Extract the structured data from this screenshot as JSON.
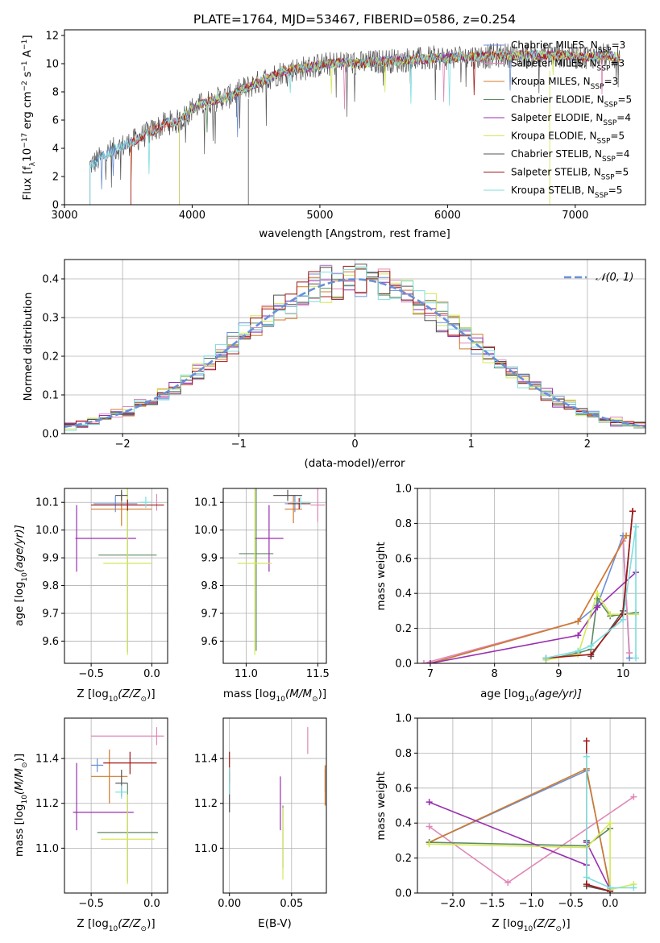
{
  "chart_data": [
    {
      "id": "spectrum",
      "type": "line",
      "title": "PLATE=1764, MJD=53467, FIBERID=0586, z=0.254",
      "xlabel": "wavelength [Angstrom, rest frame]",
      "ylabel_parts": [
        "Flux [f",
        "λ",
        "10",
        "−17",
        " erg cm",
        "−2",
        " s",
        "−1",
        " A",
        "−1",
        "]"
      ],
      "xlim": [
        3000,
        7550
      ],
      "ylim": [
        0,
        12.4
      ],
      "xticks": [
        3000,
        4000,
        5000,
        6000,
        7000
      ],
      "yticks": [
        0,
        2,
        4,
        6,
        8,
        10,
        12
      ],
      "grid": false,
      "legend_position": "upper-right",
      "series": [
        {
          "name": "Chabrier MILES, N",
          "sub": "SSP",
          "suffix": "=3",
          "color": "#6a8fd6"
        },
        {
          "name": "Salpeter MILES, N",
          "sub": "SSP",
          "suffix": "=3",
          "color": "#e088b8"
        },
        {
          "name": "Kroupa MILES, N",
          "sub": "SSP",
          "suffix": "=3",
          "color": "#d17a2a"
        },
        {
          "name": "Chabrier ELODIE, N",
          "sub": "SSP",
          "suffix": "=5",
          "color": "#5e8a62"
        },
        {
          "name": "Salpeter ELODIE, N",
          "sub": "SSP",
          "suffix": "=4",
          "color": "#9a2fb0"
        },
        {
          "name": "Kroupa ELODIE, N",
          "sub": "SSP",
          "suffix": "=5",
          "color": "#d4e85a"
        },
        {
          "name": "Chabrier STELIB, N",
          "sub": "SSP",
          "suffix": "=4",
          "color": "#555555"
        },
        {
          "name": "Salpeter STELIB, N",
          "sub": "SSP",
          "suffix": "=5",
          "color": "#a11818"
        },
        {
          "name": "Kroupa STELIB, N",
          "sub": "SSP",
          "suffix": "=5",
          "color": "#7fdede"
        }
      ],
      "continuum": [
        [
          3200,
          2.8
        ],
        [
          3300,
          3.4
        ],
        [
          3400,
          4.0
        ],
        [
          3500,
          4.3
        ],
        [
          3600,
          4.8
        ],
        [
          3700,
          5.3
        ],
        [
          3800,
          5.8
        ],
        [
          3900,
          5.9
        ],
        [
          4000,
          6.8
        ],
        [
          4100,
          7.2
        ],
        [
          4200,
          7.5
        ],
        [
          4300,
          7.7
        ],
        [
          4400,
          8.2
        ],
        [
          4500,
          8.6
        ],
        [
          4600,
          9.0
        ],
        [
          4700,
          9.4
        ],
        [
          4800,
          9.6
        ],
        [
          4900,
          9.7
        ],
        [
          5000,
          9.9
        ],
        [
          5100,
          10.0
        ],
        [
          5200,
          10.1
        ],
        [
          5300,
          10.0
        ],
        [
          5400,
          10.1
        ],
        [
          5500,
          10.2
        ],
        [
          5600,
          10.2
        ],
        [
          5700,
          10.3
        ],
        [
          5800,
          10.3
        ],
        [
          5900,
          10.4
        ],
        [
          6000,
          10.4
        ],
        [
          6100,
          10.5
        ],
        [
          6200,
          10.5
        ],
        [
          6300,
          10.5
        ],
        [
          6400,
          10.6
        ],
        [
          6500,
          10.6
        ],
        [
          6600,
          10.6
        ],
        [
          6700,
          10.6
        ],
        [
          6800,
          10.6
        ],
        [
          6900,
          10.6
        ],
        [
          7000,
          10.5
        ],
        [
          7100,
          10.5
        ],
        [
          7200,
          10.6
        ],
        [
          7300,
          10.5
        ],
        [
          7350,
          10.4
        ]
      ],
      "series_starts": [
        3200,
        3520,
        3520,
        3900,
        3900,
        3900,
        3200,
        3520,
        3200
      ]
    },
    {
      "id": "residuals",
      "type": "histogram",
      "xlabel": "(data-model)/error",
      "ylabel": "Normed distribution",
      "xlim": [
        -2.5,
        2.5
      ],
      "ylim": [
        0,
        0.45
      ],
      "xticks": [
        -2,
        -1,
        0,
        1,
        2
      ],
      "yticks": [
        0.0,
        0.1,
        0.2,
        0.3,
        0.4
      ],
      "grid": true,
      "legend_position": "upper-right",
      "reference_curve": {
        "name": "𝒩(0, 1)",
        "mean": 0,
        "sigma": 1,
        "color": "#6a8fd6",
        "dashed": true
      },
      "bin_width": 0.1
    },
    {
      "id": "age-vs-Z",
      "type": "errorbar",
      "xlabel_main": "Z [log",
      "xlabel_sub": "10",
      "xlabel_rest": "(Z/Z",
      "xlabel_end": ")]",
      "ylabel_main": "age  [log",
      "ylabel_sub": "10",
      "ylabel_rest": "(age/yr)]",
      "xlim": [
        -0.72,
        0.13
      ],
      "ylim": [
        9.52,
        10.15
      ],
      "xticks": [
        -0.5,
        0.0
      ],
      "yticks": [
        9.6,
        9.7,
        9.8,
        9.9,
        10.0,
        10.1
      ],
      "grid": true,
      "points": [
        {
          "series": 0,
          "x": -0.3,
          "xerr": 0.18,
          "y": 10.095,
          "yerr": 0.03
        },
        {
          "series": 1,
          "x": 0.04,
          "xerr": 0.0,
          "y": 10.1,
          "yerr": 0.03
        },
        {
          "series": 2,
          "x": -0.25,
          "xerr": 0.25,
          "y": 10.075,
          "yerr": 0.06
        },
        {
          "series": 3,
          "x": -0.2,
          "xerr": 0.24,
          "y": 9.91,
          "yerr": 0.35
        },
        {
          "series": 4,
          "x": -0.62,
          "xerr": 0.0,
          "y": 9.97,
          "yerr": 0.12
        },
        {
          "series": 4,
          "x": -0.38,
          "xerr": 0.25,
          "y": 9.97,
          "yerr": 0.0
        },
        {
          "series": 5,
          "x": -0.2,
          "xerr": 0.2,
          "y": 9.88,
          "yerr": 0.33
        },
        {
          "series": 6,
          "x": -0.25,
          "xerr": 0.05,
          "y": 10.125,
          "yerr": 0.02
        },
        {
          "series": 7,
          "x": -0.2,
          "xerr": 0.3,
          "y": 10.09,
          "yerr": 0.02
        },
        {
          "series": 8,
          "x": -0.05,
          "xerr": 0.05,
          "y": 10.1,
          "yerr": 0.02
        }
      ]
    },
    {
      "id": "age-vs-mass",
      "type": "errorbar",
      "xlabel_main": "mass [log",
      "xlabel_sub": "10",
      "xlabel_rest": "(M/M",
      "xlabel_end": ")]",
      "xlim": [
        10.84,
        11.56
      ],
      "ylim": [
        9.52,
        10.15
      ],
      "xticks": [
        11.0,
        11.5
      ],
      "yticks": [
        9.6,
        9.7,
        9.8,
        9.9,
        10.0,
        10.1
      ],
      "grid": true,
      "points": [
        {
          "series": 0,
          "x": 11.34,
          "xerr": 0.07,
          "y": 10.095,
          "yerr": 0.03
        },
        {
          "series": 1,
          "x": 11.5,
          "xerr": 0.05,
          "y": 10.09,
          "yerr": 0.06
        },
        {
          "series": 2,
          "x": 11.33,
          "xerr": 0.06,
          "y": 10.075,
          "yerr": 0.05
        },
        {
          "series": 3,
          "x": 11.07,
          "xerr": 0.12,
          "y": 9.915,
          "yerr": 0.35
        },
        {
          "series": 4,
          "x": 11.16,
          "xerr": 0.1,
          "y": 9.97,
          "yerr": 0.12
        },
        {
          "series": 5,
          "x": 11.06,
          "xerr": 0.12,
          "y": 9.88,
          "yerr": 0.33
        },
        {
          "series": 6,
          "x": 11.29,
          "xerr": 0.1,
          "y": 10.125,
          "yerr": 0.02
        },
        {
          "series": 7,
          "x": 11.37,
          "xerr": 0.08,
          "y": 10.095,
          "yerr": 0.02
        },
        {
          "series": 8,
          "x": 11.38,
          "xerr": 0.07,
          "y": 10.1,
          "yerr": 0.02
        }
      ]
    },
    {
      "id": "weight-vs-age",
      "type": "line",
      "xlabel_main": "age  [log",
      "xlabel_sub": "10",
      "xlabel_rest": "(age/yr)]",
      "ylabel": "mass weight",
      "xlim": [
        6.8,
        10.35
      ],
      "ylim": [
        0,
        1.0
      ],
      "xticks": [
        7,
        8,
        9,
        10
      ],
      "yticks": [
        0.0,
        0.2,
        0.4,
        0.6,
        0.8,
        1.0
      ],
      "grid": true,
      "series": [
        {
          "series": 0,
          "points": [
            [
              7.0,
              0.0
            ],
            [
              9.3,
              0.24
            ],
            [
              9.6,
              0.33
            ],
            [
              10.0,
              0.73
            ],
            [
              10.1,
              0.03
            ]
          ]
        },
        {
          "series": 1,
          "points": [
            [
              6.9,
              0.0
            ],
            [
              9.3,
              0.24
            ],
            [
              10.0,
              0.7
            ],
            [
              10.1,
              0.06
            ]
          ]
        },
        {
          "series": 2,
          "points": [
            [
              7.0,
              0.0
            ],
            [
              9.3,
              0.24
            ],
            [
              10.05,
              0.73
            ]
          ]
        },
        {
          "series": 3,
          "points": [
            [
              8.8,
              0.02
            ],
            [
              9.3,
              0.06
            ],
            [
              9.5,
              0.08
            ],
            [
              9.6,
              0.37
            ],
            [
              9.8,
              0.27
            ],
            [
              10.2,
              0.29
            ]
          ]
        },
        {
          "series": 4,
          "points": [
            [
              7.0,
              0.0
            ],
            [
              9.3,
              0.16
            ],
            [
              9.6,
              0.32
            ],
            [
              10.2,
              0.52
            ]
          ]
        },
        {
          "series": 5,
          "points": [
            [
              8.8,
              0.02
            ],
            [
              9.3,
              0.05
            ],
            [
              9.6,
              0.4
            ],
            [
              9.8,
              0.28
            ],
            [
              10.2,
              0.28
            ]
          ]
        },
        {
          "series": 6,
          "points": [
            [
              9.5,
              0.04
            ],
            [
              10.0,
              0.3
            ],
            [
              10.15,
              0.87
            ]
          ]
        },
        {
          "series": 7,
          "points": [
            [
              8.8,
              0.03
            ],
            [
              9.5,
              0.05
            ],
            [
              10.0,
              0.28
            ],
            [
              10.15,
              0.87
            ]
          ]
        },
        {
          "series": 8,
          "points": [
            [
              8.8,
              0.03
            ],
            [
              9.3,
              0.07
            ],
            [
              9.5,
              0.1
            ],
            [
              10.0,
              0.25
            ],
            [
              10.2,
              0.78
            ],
            [
              10.2,
              0.03
            ]
          ]
        }
      ]
    },
    {
      "id": "mass-vs-Z",
      "type": "errorbar",
      "xlabel_main": "Z [log",
      "xlabel_sub": "10",
      "xlabel_rest": "(Z/Z",
      "xlabel_end": ")]",
      "ylabel_main": "mass [log",
      "ylabel_sub": "10",
      "ylabel_rest": "(M/M",
      "ylabel_end": ")]",
      "xlim": [
        -0.72,
        0.13
      ],
      "ylim": [
        10.8,
        11.58
      ],
      "xticks": [
        -0.5,
        0.0
      ],
      "yticks": [
        11.0,
        11.2,
        11.4
      ],
      "grid": true,
      "points": [
        {
          "series": 0,
          "x": -0.45,
          "xerr": 0.05,
          "y": 11.37,
          "yerr": 0.03
        },
        {
          "series": 1,
          "x": -0.2,
          "xerr": 0.3,
          "y": 11.5,
          "yerr": 0.0
        },
        {
          "series": 1,
          "x": 0.04,
          "xerr": 0.0,
          "y": 11.5,
          "yerr": 0.04
        },
        {
          "series": 2,
          "x": -0.35,
          "xerr": 0.15,
          "y": 11.32,
          "yerr": 0.12
        },
        {
          "series": 3,
          "x": -0.2,
          "xerr": 0.25,
          "y": 11.07,
          "yerr": 0.22
        },
        {
          "series": 4,
          "x": -0.62,
          "xerr": 0.0,
          "y": 11.23,
          "yerr": 0.15
        },
        {
          "series": 4,
          "x": -0.4,
          "xerr": 0.25,
          "y": 11.16,
          "yerr": 0.0
        },
        {
          "series": 5,
          "x": -0.2,
          "xerr": 0.22,
          "y": 11.04,
          "yerr": 0.2
        },
        {
          "series": 6,
          "x": -0.25,
          "xerr": 0.05,
          "y": 11.29,
          "yerr": 0.06
        },
        {
          "series": 7,
          "x": -0.18,
          "xerr": 0.22,
          "y": 11.38,
          "yerr": 0.05
        },
        {
          "series": 8,
          "x": -0.25,
          "xerr": 0.05,
          "y": 11.25,
          "yerr": 0.03
        }
      ]
    },
    {
      "id": "mass-vs-ebv",
      "type": "errorbar",
      "xlabel": "E(B-V)",
      "xlim": [
        -0.005,
        0.078
      ],
      "ylim": [
        10.8,
        11.58
      ],
      "xticks": [
        0.0,
        0.05
      ],
      "yticks": [
        11.0,
        11.2,
        11.4
      ],
      "grid": true,
      "points": [
        {
          "series": 0,
          "x": 0.077,
          "xerr": 0.0,
          "y": 11.3,
          "yerr": 0.05
        },
        {
          "series": 1,
          "x": 0.063,
          "xerr": 0.0,
          "y": 11.48,
          "yerr": 0.06
        },
        {
          "series": 2,
          "x": 0.077,
          "xerr": 0.0,
          "y": 11.28,
          "yerr": 0.09
        },
        {
          "series": 3,
          "x": 0.043,
          "xerr": 0.0,
          "y": 11.05,
          "yerr": 0.14
        },
        {
          "series": 4,
          "x": 0.041,
          "xerr": 0.0,
          "y": 11.2,
          "yerr": 0.12
        },
        {
          "series": 5,
          "x": 0.043,
          "xerr": 0.0,
          "y": 11.02,
          "yerr": 0.16
        },
        {
          "series": 6,
          "x": 0.0,
          "xerr": 0.0,
          "y": 11.25,
          "yerr": 0.09
        },
        {
          "series": 7,
          "x": 0.0,
          "xerr": 0.0,
          "y": 11.36,
          "yerr": 0.07
        },
        {
          "series": 8,
          "x": 0.0,
          "xerr": 0.0,
          "y": 11.3,
          "yerr": 0.06
        }
      ]
    },
    {
      "id": "weight-vs-Z",
      "type": "line",
      "xlabel_main": "Z [log",
      "xlabel_sub": "10",
      "xlabel_rest": "(Z/Z",
      "xlabel_end": ")]",
      "ylabel": "mass weight",
      "xlim": [
        -2.45,
        0.45
      ],
      "ylim": [
        0,
        1.0
      ],
      "xticks": [
        -2.0,
        -1.5,
        -1.0,
        -0.5,
        0.0
      ],
      "yticks": [
        0.0,
        0.2,
        0.4,
        0.6,
        0.8,
        1.0
      ],
      "grid": true,
      "series": [
        {
          "series": 0,
          "points": [
            [
              -2.3,
              0.29
            ],
            [
              -0.3,
              0.7
            ],
            [
              0.0,
              0.03
            ]
          ]
        },
        {
          "series": 1,
          "points": [
            [
              -2.3,
              0.38
            ],
            [
              -1.3,
              0.06
            ],
            [
              0.3,
              0.55
            ]
          ]
        },
        {
          "series": 2,
          "points": [
            [
              -2.3,
              0.29
            ],
            [
              -0.3,
              0.71
            ],
            [
              0.0,
              0.02
            ]
          ]
        },
        {
          "series": 3,
          "points": [
            [
              -2.3,
              0.29
            ],
            [
              -0.3,
              0.27
            ],
            [
              0.0,
              0.37
            ]
          ]
        },
        {
          "series": 4,
          "points": [
            [
              -2.3,
              0.52
            ],
            [
              -0.3,
              0.16
            ],
            [
              -0.3,
              0.29
            ],
            [
              0.0,
              0.02
            ]
          ]
        },
        {
          "series": 5,
          "points": [
            [
              -2.3,
              0.28
            ],
            [
              -0.3,
              0.26
            ],
            [
              0.0,
              0.4
            ],
            [
              0.0,
              0.02
            ],
            [
              0.3,
              0.05
            ]
          ]
        },
        {
          "series": 6,
          "points": [
            [
              -0.3,
              0.3
            ],
            [
              -0.3,
              0.04
            ],
            [
              0.0,
              0.01
            ]
          ]
        },
        {
          "series": 7,
          "points": [
            [
              -0.3,
              0.87
            ],
            [
              -0.3,
              0.05
            ],
            [
              0.0,
              0.01
            ]
          ]
        },
        {
          "series": 8,
          "points": [
            [
              -0.3,
              0.78
            ],
            [
              -0.3,
              0.09
            ],
            [
              0.0,
              0.03
            ],
            [
              0.3,
              0.03
            ]
          ]
        }
      ]
    }
  ]
}
